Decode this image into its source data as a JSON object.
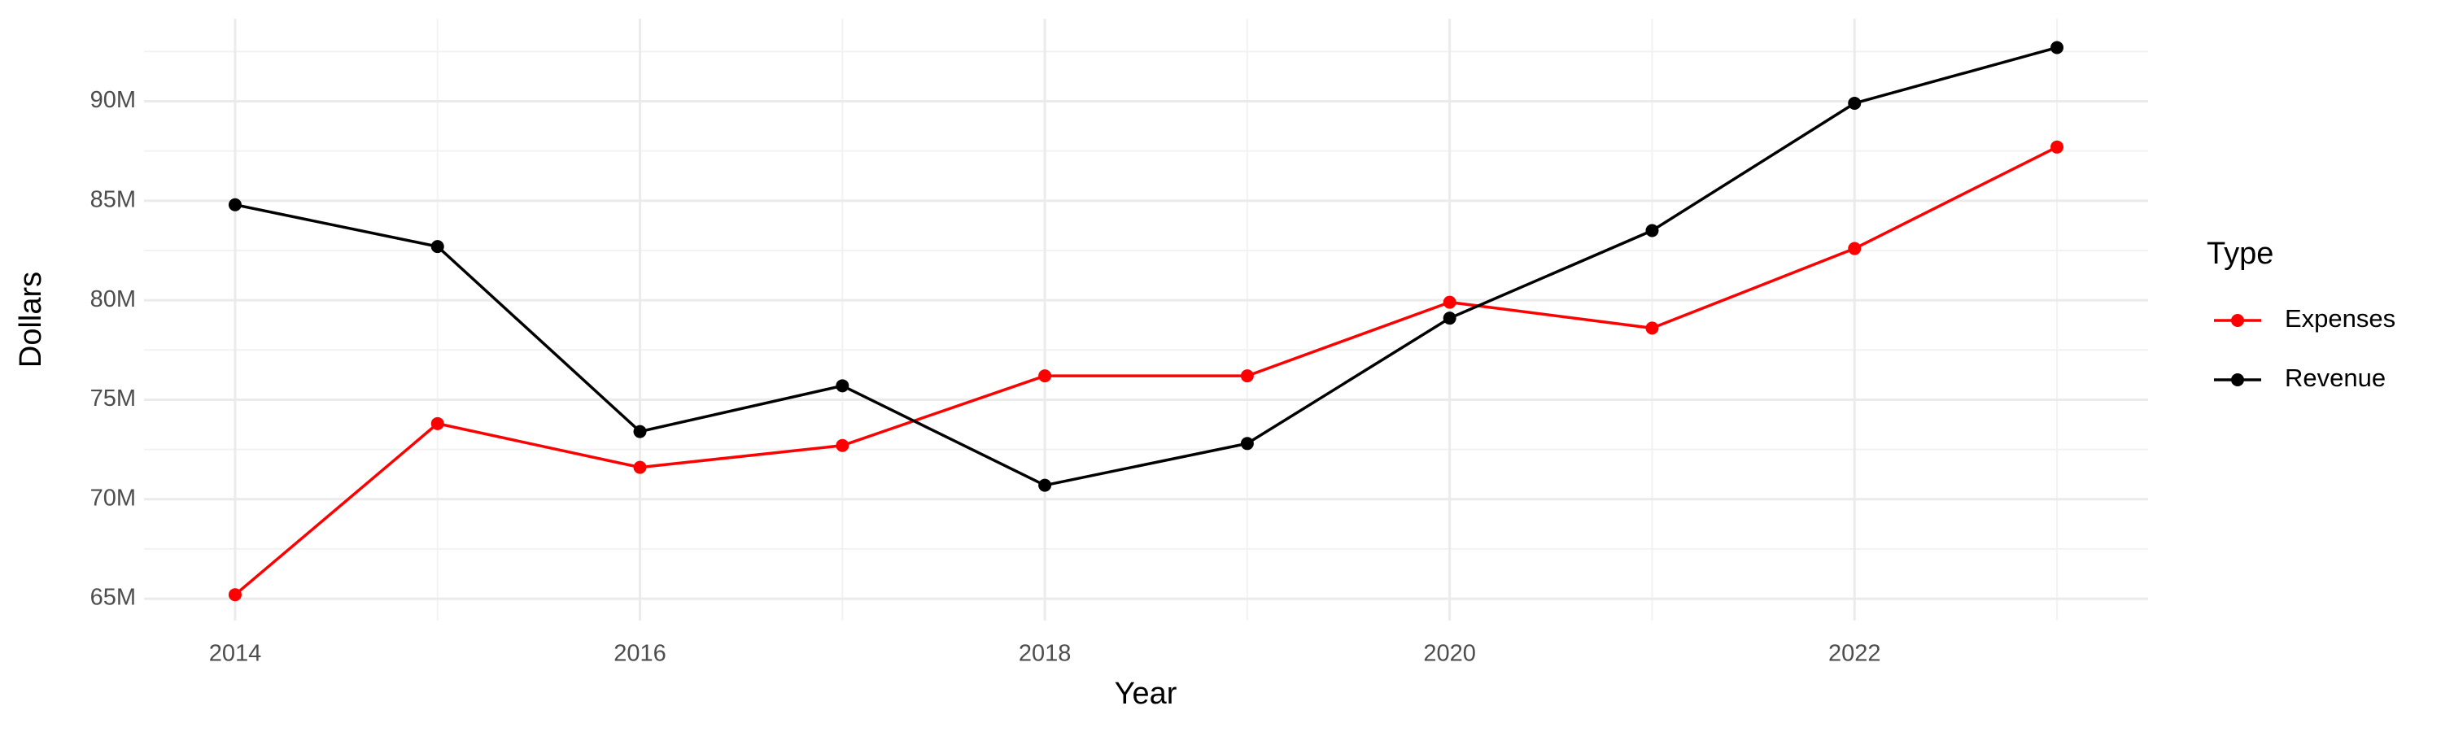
{
  "chart_data": {
    "type": "line",
    "x_label": "Year",
    "y_label": "Dollars",
    "legend_title": "Type",
    "x": [
      2014,
      2015,
      2016,
      2017,
      2018,
      2019,
      2020,
      2021,
      2022,
      2023
    ],
    "series": [
      {
        "name": "Expenses",
        "color": "#ff0000",
        "values": [
          65200000,
          73800000,
          71600000,
          72700000,
          76200000,
          76200000,
          79900000,
          78600000,
          82600000,
          87700000
        ]
      },
      {
        "name": "Revenue",
        "color": "#000000",
        "values": [
          84800000,
          82700000,
          73400000,
          75700000,
          70700000,
          72800000,
          79100000,
          83500000,
          89900000,
          92700000
        ]
      }
    ],
    "xlim": [
      2013.55,
      2023.45
    ],
    "ylim": [
      63900000,
      94150000
    ],
    "xticks": [
      2014,
      2016,
      2018,
      2020,
      2022
    ],
    "minor_xticks": [
      2015,
      2017,
      2019,
      2021,
      2023
    ],
    "yticks": [
      {
        "value": 65000000,
        "label": "65M"
      },
      {
        "value": 70000000,
        "label": "70M"
      },
      {
        "value": 75000000,
        "label": "75M"
      },
      {
        "value": 80000000,
        "label": "80M"
      },
      {
        "value": 85000000,
        "label": "85M"
      },
      {
        "value": 90000000,
        "label": "90M"
      }
    ],
    "minor_yticks": [
      67500000,
      72500000,
      77500000,
      82500000,
      87500000,
      92500000
    ],
    "grid": true,
    "legend_position": "right"
  }
}
